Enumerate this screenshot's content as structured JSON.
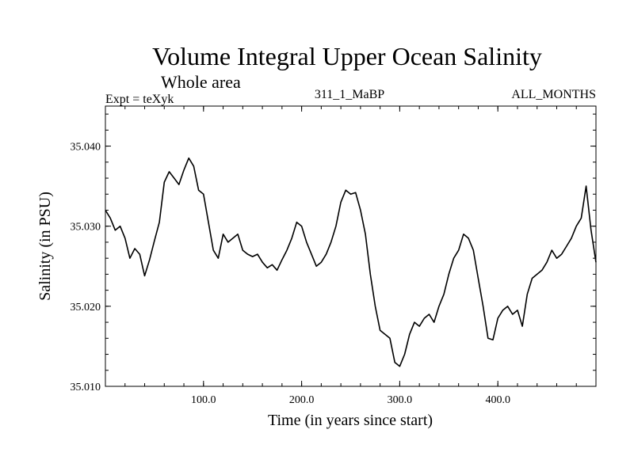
{
  "header": {
    "title": "Volume Integral Upper Ocean Salinity",
    "subtitle": "Whole area",
    "experiment_label": "Expt = teXyk",
    "run_id": "311_1_MaBP",
    "months_label": "ALL_MONTHS"
  },
  "chart_data": {
    "type": "line",
    "title": "Volume Integral Upper Ocean Salinity",
    "subtitle": "Whole area",
    "xlabel": "Time (in years since start)",
    "ylabel": "Salinity (in PSU)",
    "xlim": [
      0,
      500
    ],
    "ylim": [
      35.01,
      35.045
    ],
    "x_ticks": [
      100,
      200,
      300,
      400
    ],
    "x_tick_labels": [
      "100.0",
      "200.0",
      "300.0",
      "400.0"
    ],
    "y_ticks": [
      35.01,
      35.02,
      35.03,
      35.04
    ],
    "y_tick_labels": [
      "35.010",
      "35.020",
      "35.030",
      "35.040"
    ],
    "grid": false,
    "legend": "none",
    "line_color": "#000000",
    "series": [
      {
        "x": [
          0,
          5,
          10,
          15,
          20,
          25,
          30,
          35,
          40,
          45,
          50,
          55,
          60,
          65,
          70,
          75,
          80,
          85,
          90,
          95,
          100,
          105,
          110,
          115,
          120,
          125,
          130,
          135,
          140,
          145,
          150,
          155,
          160,
          165,
          170,
          175,
          180,
          185,
          190,
          195,
          200,
          205,
          210,
          215,
          220,
          225,
          230,
          235,
          240,
          245,
          250,
          255,
          260,
          265,
          270,
          275,
          280,
          285,
          290,
          295,
          300,
          305,
          310,
          315,
          320,
          325,
          330,
          335,
          340,
          345,
          350,
          355,
          360,
          365,
          370,
          375,
          380,
          385,
          390,
          395,
          400,
          405,
          410,
          415,
          420,
          425,
          430,
          435,
          440,
          445,
          450,
          455,
          460,
          465,
          470,
          475,
          480,
          485,
          490,
          495,
          500
        ],
        "values": [
          35.032,
          35.031,
          35.0295,
          35.03,
          35.0285,
          35.026,
          35.0272,
          35.0265,
          35.0238,
          35.0258,
          35.0282,
          35.0305,
          35.0355,
          35.0368,
          35.036,
          35.0352,
          35.037,
          35.0385,
          35.0375,
          35.0345,
          35.034,
          35.0305,
          35.027,
          35.026,
          35.029,
          35.028,
          35.0285,
          35.029,
          35.027,
          35.0265,
          35.0262,
          35.0265,
          35.0255,
          35.0248,
          35.0252,
          35.0245,
          35.0258,
          35.027,
          35.0285,
          35.0305,
          35.03,
          35.028,
          35.0265,
          35.025,
          35.0255,
          35.0265,
          35.028,
          35.03,
          35.033,
          35.0345,
          35.034,
          35.0342,
          35.032,
          35.029,
          35.024,
          35.02,
          35.017,
          35.0165,
          35.016,
          35.013,
          35.0125,
          35.014,
          35.0165,
          35.018,
          35.0175,
          35.0185,
          35.019,
          35.018,
          35.02,
          35.0215,
          35.024,
          35.026,
          35.027,
          35.029,
          35.0285,
          35.027,
          35.0235,
          35.02,
          35.016,
          35.0158,
          35.0185,
          35.0195,
          35.02,
          35.019,
          35.0195,
          35.0175,
          35.0215,
          35.0235,
          35.024,
          35.0245,
          35.0255,
          35.027,
          35.026,
          35.0265,
          35.0275,
          35.0285,
          35.03,
          35.031,
          35.035,
          35.0295,
          35.0255
        ]
      }
    ]
  }
}
